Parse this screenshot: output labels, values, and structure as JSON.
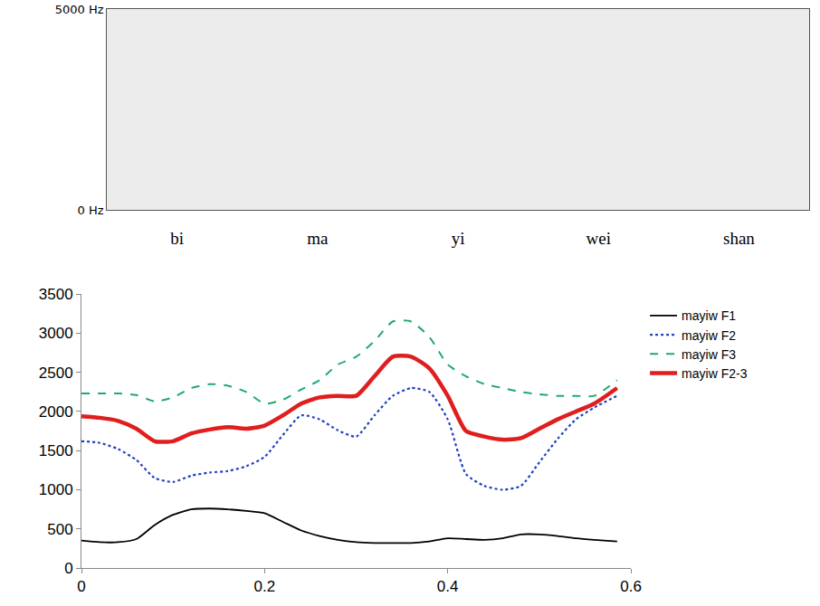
{
  "chart_data": [
    {
      "type": "spectrogram",
      "categories": [
        "bi",
        "ma",
        "yi",
        "wei",
        "shan"
      ],
      "ylim": [
        0,
        5000
      ],
      "yticks": [
        {
          "value": 0,
          "label": "0 Hz"
        },
        {
          "value": 5000,
          "label": "5000 Hz"
        }
      ]
    },
    {
      "type": "line",
      "x": [
        0,
        0.02,
        0.04,
        0.06,
        0.08,
        0.1,
        0.12,
        0.14,
        0.16,
        0.18,
        0.2,
        0.22,
        0.24,
        0.26,
        0.28,
        0.3,
        0.32,
        0.34,
        0.36,
        0.38,
        0.4,
        0.42,
        0.44,
        0.46,
        0.48,
        0.5,
        0.52,
        0.54,
        0.56,
        0.585
      ],
      "series": [
        {
          "name": "mayiw F1",
          "color": "#000000",
          "line_style": "solid",
          "values": [
            350,
            330,
            330,
            370,
            550,
            680,
            750,
            760,
            750,
            730,
            700,
            590,
            480,
            410,
            360,
            330,
            320,
            320,
            320,
            340,
            380,
            370,
            360,
            380,
            430,
            430,
            410,
            380,
            360,
            340
          ]
        },
        {
          "name": "mayiw F2",
          "color": "#2040c0",
          "line_style": "dot",
          "values": [
            1620,
            1600,
            1520,
            1380,
            1150,
            1100,
            1180,
            1220,
            1240,
            1300,
            1420,
            1700,
            1950,
            1900,
            1760,
            1680,
            1950,
            2200,
            2300,
            2250,
            1900,
            1200,
            1050,
            1000,
            1050,
            1350,
            1650,
            1900,
            2050,
            2200
          ]
        },
        {
          "name": "mayiw F3",
          "color": "#1faa6a",
          "line_style": "dash",
          "values": [
            2230,
            2230,
            2230,
            2210,
            2130,
            2180,
            2300,
            2350,
            2330,
            2250,
            2100,
            2150,
            2280,
            2400,
            2600,
            2700,
            2900,
            3150,
            3150,
            2950,
            2600,
            2450,
            2350,
            2300,
            2250,
            2220,
            2200,
            2200,
            2200,
            2400
          ]
        },
        {
          "name": "mayiw F2-3",
          "color": "#e01e1e",
          "line_style": "solid",
          "values": [
            1940,
            1920,
            1880,
            1780,
            1620,
            1620,
            1720,
            1770,
            1800,
            1780,
            1820,
            1950,
            2100,
            2180,
            2200,
            2200,
            2450,
            2700,
            2700,
            2550,
            2200,
            1750,
            1680,
            1640,
            1660,
            1780,
            1900,
            2000,
            2100,
            2300
          ]
        }
      ],
      "xlim": [
        0,
        0.6
      ],
      "xticks": [
        0,
        0.2,
        0.4,
        0.6
      ],
      "ylim": [
        0,
        3500
      ],
      "yticks": [
        0,
        500,
        1000,
        1500,
        2000,
        2500,
        3000,
        3500
      ],
      "grid": false,
      "legend": "right"
    }
  ]
}
